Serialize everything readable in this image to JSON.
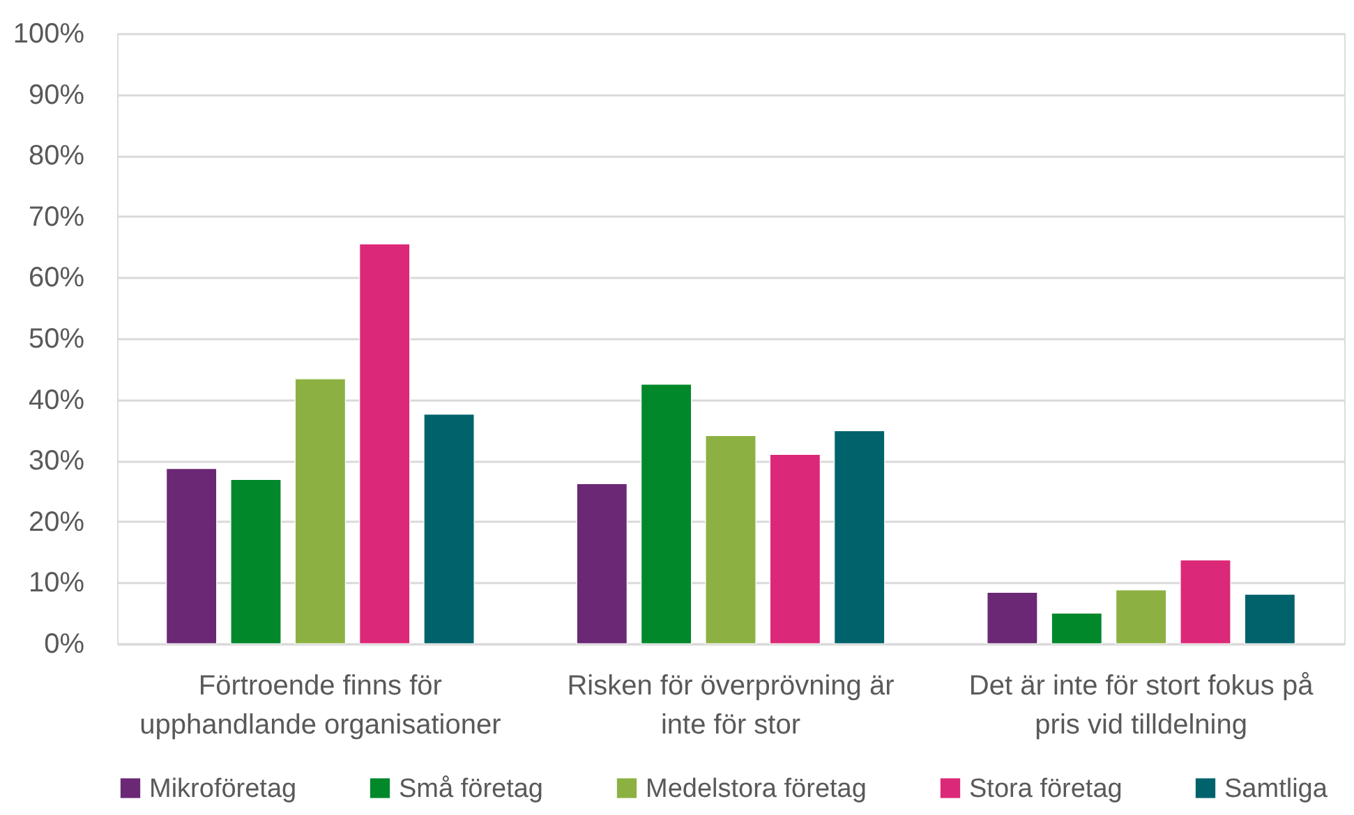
{
  "chart_data": {
    "type": "bar",
    "categories": [
      "Förtroende finns för upphandlande organisationer",
      "Risken för överprövning är inte för stor",
      "Det är inte för stort fokus på pris vid tilldelning"
    ],
    "series": [
      {
        "name": "Mikroföretag",
        "color": "#6a2875",
        "values": [
          28.7,
          26.2,
          8.4
        ]
      },
      {
        "name": "Små företag",
        "color": "#00882b",
        "values": [
          26.9,
          42.5,
          5.0
        ]
      },
      {
        "name": "Medelstora företag",
        "color": "#8cb142",
        "values": [
          43.4,
          34.1,
          8.8
        ]
      },
      {
        "name": "Stora företag",
        "color": "#dc2878",
        "values": [
          65.5,
          31.0,
          13.7
        ]
      },
      {
        "name": "Samtliga",
        "color": "#00626b",
        "values": [
          37.6,
          34.9,
          8.1
        ]
      }
    ],
    "ylim": [
      0,
      100
    ],
    "yticks": [
      {
        "value": 0,
        "label": "0%"
      },
      {
        "value": 10,
        "label": "10%"
      },
      {
        "value": 20,
        "label": "20%"
      },
      {
        "value": 30,
        "label": "30%"
      },
      {
        "value": 40,
        "label": "40%"
      },
      {
        "value": 50,
        "label": "50%"
      },
      {
        "value": 60,
        "label": "60%"
      },
      {
        "value": 70,
        "label": "70%"
      },
      {
        "value": 80,
        "label": "80%"
      },
      {
        "value": 90,
        "label": "90%"
      },
      {
        "value": 100,
        "label": "100%"
      }
    ],
    "grid": "y",
    "legend": "bottom"
  }
}
